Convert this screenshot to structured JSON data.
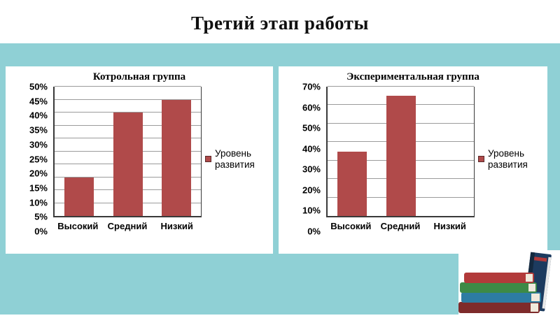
{
  "slide": {
    "title": "Третий этап работы"
  },
  "colors": {
    "background_teal": "#8fd0d5",
    "panel_white": "#ffffff",
    "bar_red": "#b04a4a",
    "axis": "#3a3a3a",
    "gridline": "#9b9b9b"
  },
  "chart_data": [
    {
      "type": "bar",
      "title": "Котрольная группа",
      "categories": [
        "Высокий",
        "Средний",
        "Низкий"
      ],
      "values": [
        15,
        40,
        45
      ],
      "xlabel": "",
      "ylabel": "",
      "ylim": [
        0,
        50
      ],
      "ytick_step": 5,
      "tick_suffix": "%",
      "grid": true,
      "legend": "Уровень развития",
      "legend_position": "right",
      "bar_color": "#b04a4a"
    },
    {
      "type": "bar",
      "title": "Экспериментальная группа",
      "categories": [
        "Высокий",
        "Средний",
        "Низкий"
      ],
      "values": [
        35,
        65,
        0
      ],
      "xlabel": "",
      "ylabel": "",
      "ylim": [
        0,
        70
      ],
      "ytick_step": 10,
      "tick_suffix": "%",
      "grid": true,
      "legend": "Уровень развития",
      "legend_position": "right",
      "bar_color": "#b04a4a"
    }
  ],
  "decor": {
    "books_image": "stacked-books-clipart"
  }
}
